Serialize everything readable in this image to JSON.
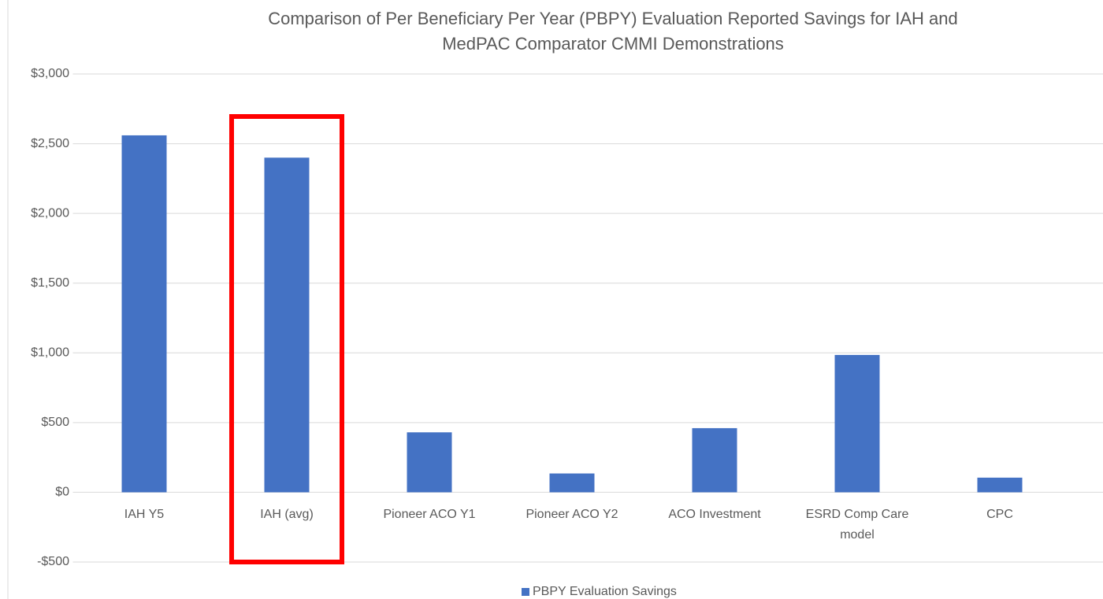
{
  "chart_data": {
    "type": "bar",
    "title": "Comparison of Per Beneficiary Per Year (PBPY) Evaluation Reported Savings for IAH and MedPAC Comparator CMMI Demonstrations",
    "categories": [
      "IAH Y5",
      "IAH (avg)",
      "Pioneer ACO Y1",
      "Pioneer ACO Y2",
      "ACO Investment",
      "ESRD Comp Care model",
      "CPC"
    ],
    "series": [
      {
        "name": "PBPY Evaluation Savings",
        "color": "#4472c4",
        "values": [
          2560,
          2400,
          430,
          135,
          460,
          985,
          105
        ]
      }
    ],
    "ylim": [
      -500,
      3000
    ],
    "yticks": [
      {
        "value": -500,
        "label": "-$500"
      },
      {
        "value": 0,
        "label": "$0"
      },
      {
        "value": 500,
        "label": "$500"
      },
      {
        "value": 1000,
        "label": "$1,000"
      },
      {
        "value": 1500,
        "label": "$1,500"
      },
      {
        "value": 2000,
        "label": "$2,000"
      },
      {
        "value": 2500,
        "label": "$2,500"
      },
      {
        "value": 3000,
        "label": "$3,000"
      }
    ],
    "grid": true,
    "legend": "bottom"
  }
}
